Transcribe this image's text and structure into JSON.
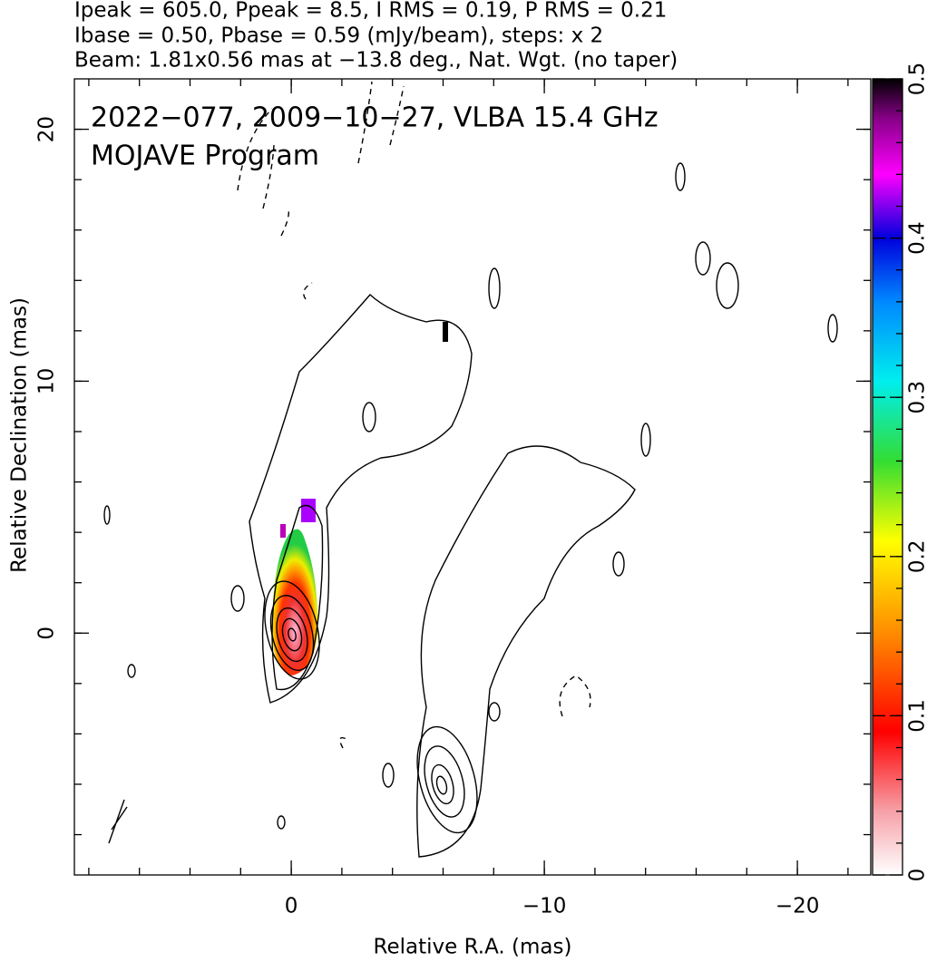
{
  "chart_data": {
    "type": "contour-map",
    "header": [
      "Ipeak = 605.0, Ppeak = 8.5, I RMS = 0.19, P RMS = 0.21",
      "Ibase = 0.50, Pbase = 0.59 (mJy/beam), steps: x 2",
      "Beam: 1.81x0.56 mas at −13.8 deg., Nat. Wgt. (no taper)"
    ],
    "title": "2022−077, 2009−10−27, VLBA 15.4 GHz",
    "subtitle": "MOJAVE Program",
    "x_label": "Relative R.A. (mas)",
    "y_label": "Relative Declination (mas)",
    "xlim": [
      8.57,
      -22.9
    ],
    "xticks": [
      0,
      {
        "value": -10,
        "label": "−10"
      },
      {
        "value": -20,
        "label": "−20"
      }
    ],
    "ylim": [
      -9.6,
      22
    ],
    "yticks": [
      0,
      10,
      20
    ],
    "colorbar_lim": [
      0,
      0.5
    ],
    "colorbar_ticks": [
      0,
      0.1,
      0.2,
      0.3,
      0.4,
      0.5
    ]
  }
}
